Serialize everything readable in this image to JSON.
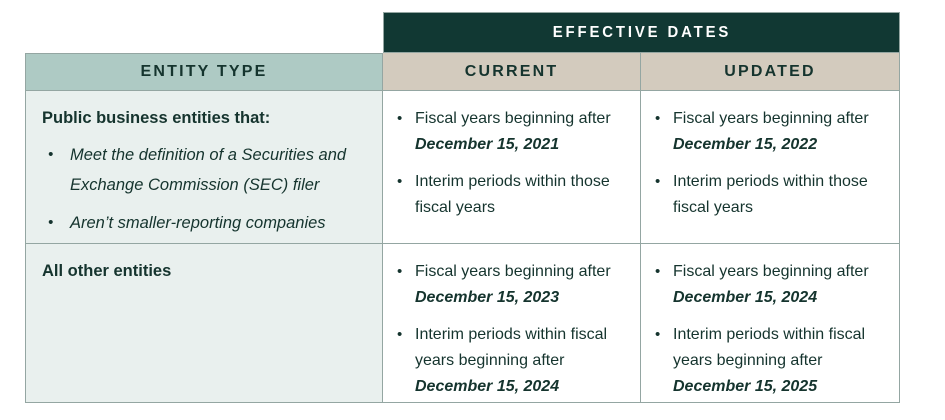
{
  "colors": {
    "header_bg": "#113833",
    "header_text": "#ffffff",
    "subheader_bg": "#d3cbbe",
    "entity_header_bg": "#aecac4",
    "entity_cell_bg": "#e9f0ee",
    "cell_bg": "#ffffff",
    "text": "#15342e",
    "border": "#94a6a2"
  },
  "table": {
    "spanner_label": "EFFECTIVE DATES",
    "column_headers": {
      "entity": "ENTITY TYPE",
      "current": "CURRENT",
      "updated": "UPDATED"
    },
    "rows": [
      {
        "entity": {
          "title": "Public business entities that:",
          "bullets": [
            "Meet the definition of a Securities and Exchange Commission (SEC) filer",
            "Aren’t smaller-reporting companies"
          ]
        },
        "current": [
          {
            "text": "Fiscal years beginning after ",
            "date": "December 15, 2021"
          },
          {
            "text": "Interim periods within those fiscal years",
            "date": ""
          }
        ],
        "updated": [
          {
            "text": "Fiscal years beginning after ",
            "date": "December 15, 2022"
          },
          {
            "text": "Interim periods within those fiscal years",
            "date": ""
          }
        ]
      },
      {
        "entity": {
          "title": "All other entities",
          "bullets": []
        },
        "current": [
          {
            "text": "Fiscal years beginning after ",
            "date": "December 15, 2023"
          },
          {
            "text": "Interim periods within fiscal years beginning after ",
            "date": "December 15, 2024"
          }
        ],
        "updated": [
          {
            "text": "Fiscal years beginning after ",
            "date": "December 15, 2024"
          },
          {
            "text": "Interim periods within fiscal years beginning after ",
            "date": "December 15, 2025"
          }
        ]
      }
    ]
  }
}
